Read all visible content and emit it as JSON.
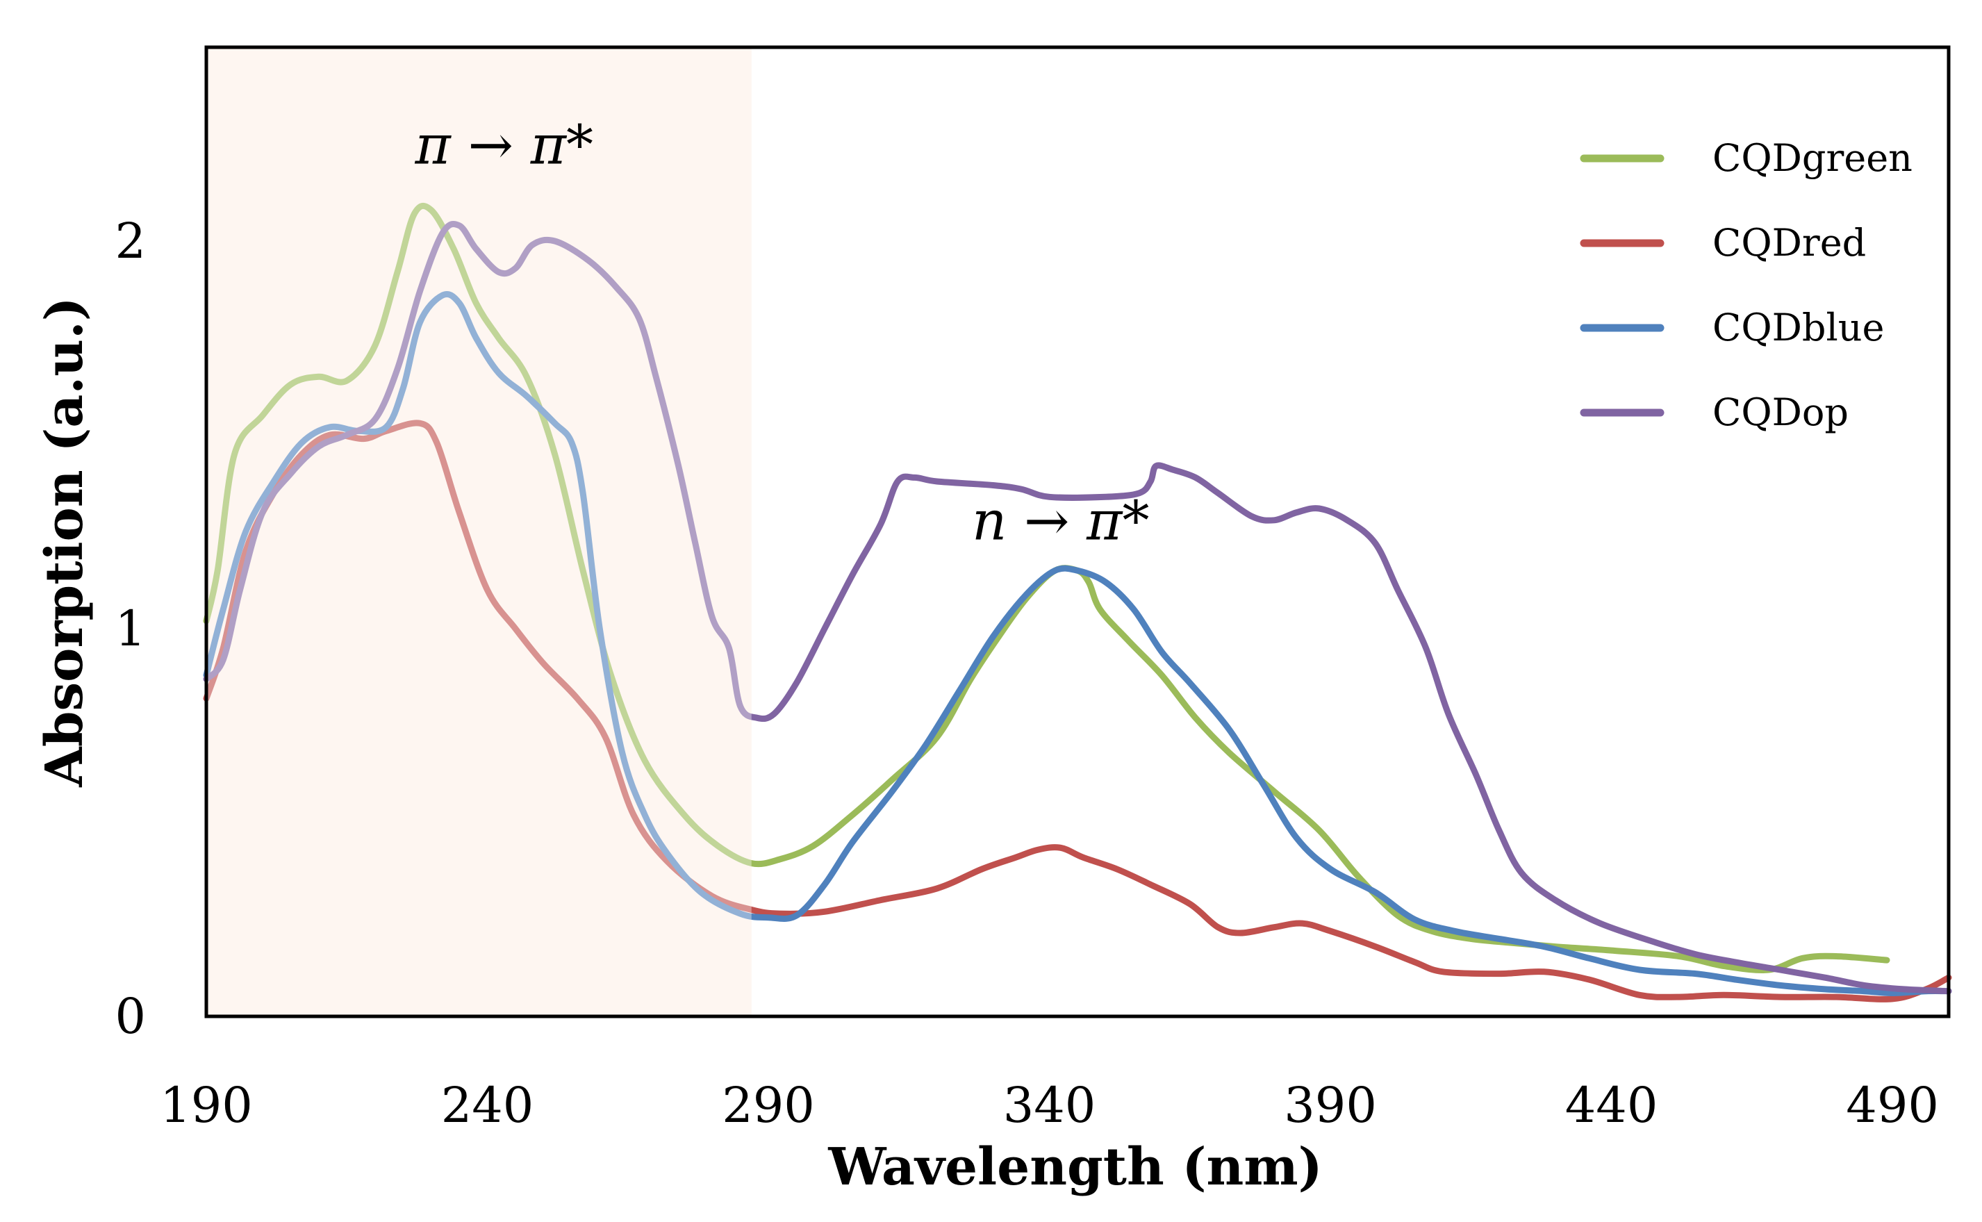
{
  "chart_data": {
    "type": "line",
    "title": "",
    "xlabel": "Wavelength (nm)",
    "ylabel": "Absorption (a.u.)",
    "xlim": [
      190,
      500
    ],
    "ylim": [
      0,
      2.5
    ],
    "x_ticks": [
      190,
      240,
      290,
      340,
      390,
      440,
      490
    ],
    "x_tick_labels": [
      "190",
      "240",
      "290",
      "340",
      "390",
      "440",
      "490"
    ],
    "y_ticks": [
      0,
      1,
      2
    ],
    "y_tick_labels": [
      "0",
      "1",
      "2"
    ],
    "shaded_region": {
      "x_start": 190,
      "x_end": 287,
      "color": "#fdf0e8"
    },
    "annotations": [
      {
        "text": "π → π*",
        "x": 243,
        "y": 2.2
      },
      {
        "text": "n → π*",
        "x": 342,
        "y": 1.23
      }
    ],
    "legend_position": "top-right",
    "series": [
      {
        "name": "CQDgreen",
        "color": "#9bbb59",
        "points": [
          [
            190,
            1.02
          ],
          [
            192,
            1.15
          ],
          [
            195,
            1.45
          ],
          [
            200,
            1.55
          ],
          [
            205,
            1.63
          ],
          [
            210,
            1.65
          ],
          [
            215,
            1.64
          ],
          [
            220,
            1.73
          ],
          [
            224,
            1.92
          ],
          [
            227,
            2.07
          ],
          [
            230,
            2.08
          ],
          [
            234,
            1.98
          ],
          [
            238,
            1.84
          ],
          [
            242,
            1.75
          ],
          [
            247,
            1.65
          ],
          [
            252,
            1.45
          ],
          [
            257,
            1.15
          ],
          [
            262,
            0.88
          ],
          [
            268,
            0.66
          ],
          [
            275,
            0.52
          ],
          [
            281,
            0.44
          ],
          [
            287,
            0.395
          ],
          [
            292,
            0.405
          ],
          [
            298,
            0.44
          ],
          [
            305,
            0.52
          ],
          [
            312,
            0.61
          ],
          [
            320,
            0.72
          ],
          [
            326,
            0.87
          ],
          [
            331,
            0.98
          ],
          [
            336,
            1.08
          ],
          [
            341,
            1.15
          ],
          [
            345,
            1.15
          ],
          [
            347,
            1.12
          ],
          [
            349,
            1.05
          ],
          [
            354,
            0.97
          ],
          [
            360,
            0.88
          ],
          [
            366,
            0.77
          ],
          [
            372,
            0.68
          ],
          [
            380,
            0.58
          ],
          [
            388,
            0.48
          ],
          [
            395,
            0.36
          ],
          [
            402,
            0.26
          ],
          [
            408,
            0.22
          ],
          [
            415,
            0.2
          ],
          [
            422,
            0.19
          ],
          [
            430,
            0.18
          ],
          [
            440,
            0.17
          ],
          [
            452,
            0.155
          ],
          [
            460,
            0.13
          ],
          [
            468,
            0.12
          ],
          [
            474,
            0.15
          ],
          [
            480,
            0.155
          ],
          [
            489,
            0.145
          ]
        ]
      },
      {
        "name": "CQDred",
        "color": "#c0504d",
        "points": [
          [
            190,
            0.82
          ],
          [
            193,
            0.95
          ],
          [
            197,
            1.2
          ],
          [
            202,
            1.35
          ],
          [
            207,
            1.45
          ],
          [
            212,
            1.5
          ],
          [
            218,
            1.49
          ],
          [
            222,
            1.51
          ],
          [
            228,
            1.53
          ],
          [
            231,
            1.48
          ],
          [
            235,
            1.3
          ],
          [
            240,
            1.1
          ],
          [
            245,
            1.0
          ],
          [
            250,
            0.91
          ],
          [
            256,
            0.82
          ],
          [
            261,
            0.72
          ],
          [
            266,
            0.52
          ],
          [
            272,
            0.4
          ],
          [
            280,
            0.31
          ],
          [
            287,
            0.275
          ],
          [
            292,
            0.265
          ],
          [
            300,
            0.27
          ],
          [
            310,
            0.3
          ],
          [
            320,
            0.33
          ],
          [
            328,
            0.38
          ],
          [
            334,
            0.41
          ],
          [
            338,
            0.43
          ],
          [
            342,
            0.435
          ],
          [
            346,
            0.41
          ],
          [
            352,
            0.38
          ],
          [
            358,
            0.34
          ],
          [
            365,
            0.29
          ],
          [
            370,
            0.23
          ],
          [
            374,
            0.215
          ],
          [
            380,
            0.23
          ],
          [
            385,
            0.24
          ],
          [
            390,
            0.22
          ],
          [
            398,
            0.18
          ],
          [
            405,
            0.14
          ],
          [
            410,
            0.115
          ],
          [
            420,
            0.11
          ],
          [
            428,
            0.115
          ],
          [
            436,
            0.095
          ],
          [
            445,
            0.055
          ],
          [
            452,
            0.05
          ],
          [
            460,
            0.055
          ],
          [
            470,
            0.05
          ],
          [
            480,
            0.05
          ],
          [
            490,
            0.045
          ],
          [
            496,
            0.07
          ],
          [
            500,
            0.1
          ]
        ]
      },
      {
        "name": "CQDblue",
        "color": "#4f81bd",
        "points": [
          [
            190,
            0.88
          ],
          [
            193,
            1.05
          ],
          [
            197,
            1.25
          ],
          [
            202,
            1.38
          ],
          [
            207,
            1.48
          ],
          [
            212,
            1.52
          ],
          [
            217,
            1.51
          ],
          [
            222,
            1.52
          ],
          [
            225,
            1.62
          ],
          [
            228,
            1.79
          ],
          [
            232,
            1.86
          ],
          [
            235,
            1.84
          ],
          [
            238,
            1.75
          ],
          [
            242,
            1.66
          ],
          [
            247,
            1.6
          ],
          [
            252,
            1.53
          ],
          [
            255,
            1.48
          ],
          [
            257,
            1.35
          ],
          [
            260,
            1.0
          ],
          [
            264,
            0.68
          ],
          [
            268,
            0.52
          ],
          [
            272,
            0.42
          ],
          [
            278,
            0.32
          ],
          [
            285,
            0.265
          ],
          [
            290,
            0.255
          ],
          [
            295,
            0.26
          ],
          [
            300,
            0.34
          ],
          [
            305,
            0.45
          ],
          [
            312,
            0.58
          ],
          [
            318,
            0.7
          ],
          [
            324,
            0.84
          ],
          [
            330,
            0.98
          ],
          [
            336,
            1.09
          ],
          [
            341,
            1.15
          ],
          [
            345,
            1.15
          ],
          [
            350,
            1.12
          ],
          [
            355,
            1.05
          ],
          [
            360,
            0.94
          ],
          [
            365,
            0.86
          ],
          [
            372,
            0.74
          ],
          [
            378,
            0.6
          ],
          [
            384,
            0.46
          ],
          [
            390,
            0.38
          ],
          [
            398,
            0.32
          ],
          [
            405,
            0.25
          ],
          [
            412,
            0.22
          ],
          [
            420,
            0.2
          ],
          [
            428,
            0.18
          ],
          [
            436,
            0.15
          ],
          [
            445,
            0.12
          ],
          [
            455,
            0.11
          ],
          [
            462,
            0.095
          ],
          [
            470,
            0.08
          ],
          [
            478,
            0.07
          ],
          [
            485,
            0.065
          ],
          [
            490,
            0.06
          ],
          [
            496,
            0.065
          ],
          [
            500,
            0.065
          ]
        ]
      },
      {
        "name": "CQDop",
        "color": "#8064a2",
        "points": [
          [
            190,
            0.87
          ],
          [
            193,
            0.92
          ],
          [
            196,
            1.1
          ],
          [
            200,
            1.3
          ],
          [
            205,
            1.4
          ],
          [
            210,
            1.47
          ],
          [
            215,
            1.5
          ],
          [
            220,
            1.54
          ],
          [
            224,
            1.67
          ],
          [
            228,
            1.87
          ],
          [
            232,
            2.02
          ],
          [
            235,
            2.04
          ],
          [
            238,
            1.98
          ],
          [
            242,
            1.92
          ],
          [
            245,
            1.93
          ],
          [
            248,
            1.99
          ],
          [
            252,
            2.0
          ],
          [
            258,
            1.95
          ],
          [
            263,
            1.88
          ],
          [
            267,
            1.8
          ],
          [
            270,
            1.65
          ],
          [
            274,
            1.42
          ],
          [
            277,
            1.22
          ],
          [
            280,
            1.03
          ],
          [
            283,
            0.95
          ],
          [
            285,
            0.8
          ],
          [
            288,
            0.77
          ],
          [
            291,
            0.78
          ],
          [
            295,
            0.86
          ],
          [
            300,
            1.0
          ],
          [
            305,
            1.14
          ],
          [
            310,
            1.27
          ],
          [
            313,
            1.38
          ],
          [
            316,
            1.39
          ],
          [
            320,
            1.38
          ],
          [
            330,
            1.37
          ],
          [
            335,
            1.36
          ],
          [
            340,
            1.34
          ],
          [
            350,
            1.34
          ],
          [
            356,
            1.35
          ],
          [
            358,
            1.38
          ],
          [
            359,
            1.42
          ],
          [
            362,
            1.41
          ],
          [
            366,
            1.39
          ],
          [
            370,
            1.35
          ],
          [
            376,
            1.29
          ],
          [
            380,
            1.28
          ],
          [
            384,
            1.3
          ],
          [
            388,
            1.31
          ],
          [
            393,
            1.28
          ],
          [
            398,
            1.22
          ],
          [
            402,
            1.1
          ],
          [
            407,
            0.95
          ],
          [
            411,
            0.78
          ],
          [
            416,
            0.62
          ],
          [
            420,
            0.48
          ],
          [
            424,
            0.37
          ],
          [
            430,
            0.3
          ],
          [
            438,
            0.24
          ],
          [
            448,
            0.19
          ],
          [
            455,
            0.16
          ],
          [
            462,
            0.14
          ],
          [
            470,
            0.12
          ],
          [
            478,
            0.1
          ],
          [
            485,
            0.08
          ],
          [
            492,
            0.07
          ],
          [
            500,
            0.065
          ]
        ]
      }
    ]
  }
}
